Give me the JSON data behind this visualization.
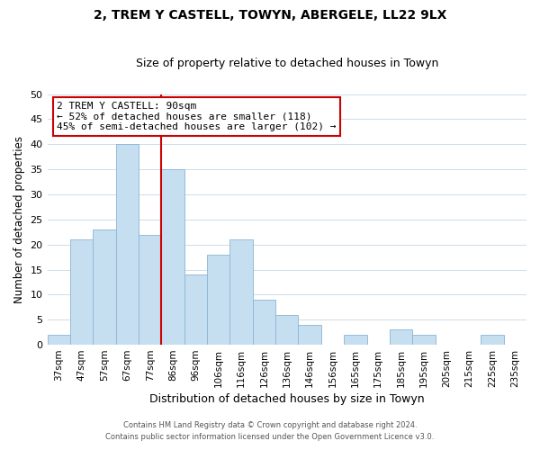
{
  "title": "2, TREM Y CASTELL, TOWYN, ABERGELE, LL22 9LX",
  "subtitle": "Size of property relative to detached houses in Towyn",
  "xlabel": "Distribution of detached houses by size in Towyn",
  "ylabel": "Number of detached properties",
  "categories": [
    "37sqm",
    "47sqm",
    "57sqm",
    "67sqm",
    "77sqm",
    "86sqm",
    "96sqm",
    "106sqm",
    "116sqm",
    "126sqm",
    "136sqm",
    "146sqm",
    "156sqm",
    "165sqm",
    "175sqm",
    "185sqm",
    "195sqm",
    "205sqm",
    "215sqm",
    "225sqm",
    "235sqm"
  ],
  "values": [
    2,
    21,
    23,
    40,
    22,
    35,
    14,
    18,
    21,
    9,
    6,
    4,
    0,
    2,
    0,
    3,
    2,
    0,
    0,
    2,
    0
  ],
  "bar_color": "#c6dff0",
  "bar_edge_color": "#8ab4d4",
  "highlight_line_color": "#cc0000",
  "annotation_title": "2 TREM Y CASTELL: 90sqm",
  "annotation_line1": "← 52% of detached houses are smaller (118)",
  "annotation_line2": "45% of semi-detached houses are larger (102) →",
  "annotation_box_color": "#ffffff",
  "annotation_box_edge_color": "#cc0000",
  "ylim": [
    0,
    50
  ],
  "yticks": [
    0,
    5,
    10,
    15,
    20,
    25,
    30,
    35,
    40,
    45,
    50
  ],
  "footer_line1": "Contains HM Land Registry data © Crown copyright and database right 2024.",
  "footer_line2": "Contains public sector information licensed under the Open Government Licence v3.0.",
  "background_color": "#ffffff",
  "grid_color": "#ccdce8"
}
